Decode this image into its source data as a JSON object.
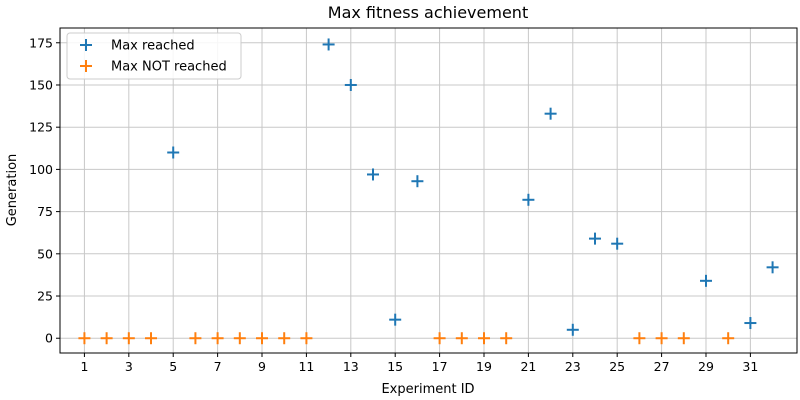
{
  "chart_data": {
    "type": "scatter",
    "title": "Max fitness achievement",
    "xlabel": "Experiment ID",
    "ylabel": "Generation",
    "xlim": [
      -0.1,
      33.1
    ],
    "ylim": [
      -8.75,
      183.75
    ],
    "x_ticks": [
      1,
      3,
      5,
      7,
      9,
      11,
      13,
      15,
      17,
      19,
      21,
      23,
      25,
      27,
      29,
      31
    ],
    "y_ticks": [
      0,
      25,
      50,
      75,
      100,
      125,
      150,
      175
    ],
    "grid": true,
    "legend_position": "top-left",
    "marker": "plus",
    "series": [
      {
        "name": "Max reached",
        "color": "#1f77b4",
        "points": [
          {
            "x": 5,
            "y": 110
          },
          {
            "x": 12,
            "y": 174
          },
          {
            "x": 13,
            "y": 150
          },
          {
            "x": 14,
            "y": 97
          },
          {
            "x": 15,
            "y": 11
          },
          {
            "x": 16,
            "y": 93
          },
          {
            "x": 21,
            "y": 82
          },
          {
            "x": 22,
            "y": 133
          },
          {
            "x": 23,
            "y": 5
          },
          {
            "x": 24,
            "y": 59
          },
          {
            "x": 25,
            "y": 56
          },
          {
            "x": 29,
            "y": 34
          },
          {
            "x": 31,
            "y": 9
          },
          {
            "x": 32,
            "y": 42
          }
        ]
      },
      {
        "name": "Max NOT reached",
        "color": "#ff7f0e",
        "points": [
          {
            "x": 1,
            "y": 0
          },
          {
            "x": 2,
            "y": 0
          },
          {
            "x": 3,
            "y": 0
          },
          {
            "x": 4,
            "y": 0
          },
          {
            "x": 6,
            "y": 0
          },
          {
            "x": 7,
            "y": 0
          },
          {
            "x": 8,
            "y": 0
          },
          {
            "x": 9,
            "y": 0
          },
          {
            "x": 10,
            "y": 0
          },
          {
            "x": 11,
            "y": 0
          },
          {
            "x": 17,
            "y": 0
          },
          {
            "x": 18,
            "y": 0
          },
          {
            "x": 19,
            "y": 0
          },
          {
            "x": 20,
            "y": 0
          },
          {
            "x": 26,
            "y": 0
          },
          {
            "x": 27,
            "y": 0
          },
          {
            "x": 28,
            "y": 0
          },
          {
            "x": 30,
            "y": 0
          }
        ]
      }
    ]
  }
}
